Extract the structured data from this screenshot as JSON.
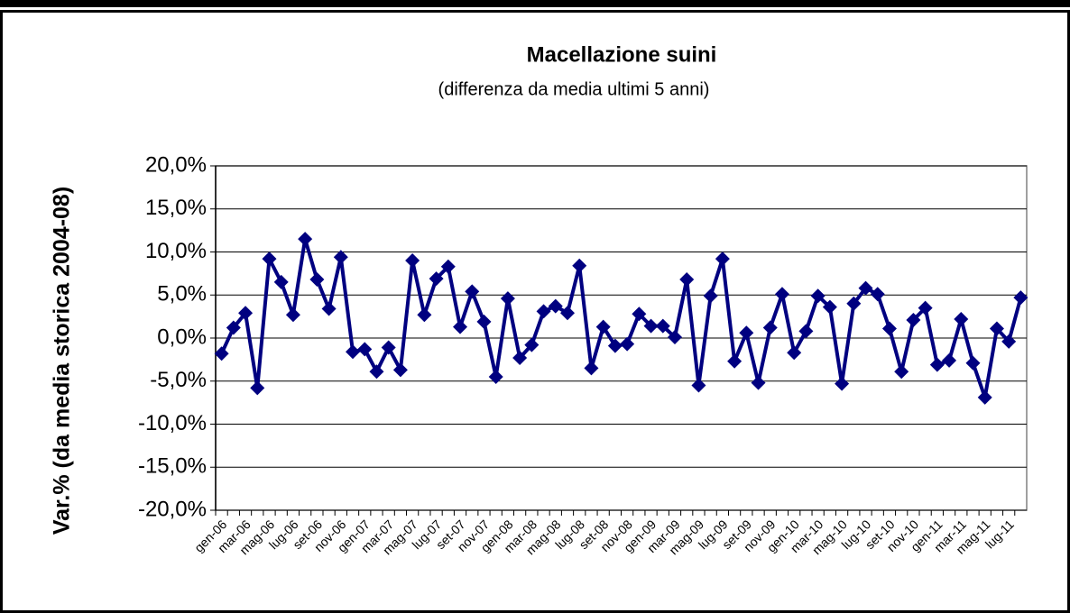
{
  "chart_data": {
    "type": "line",
    "title": "Macellazione suini",
    "subtitle": "(differenza da media ultimi 5 anni)",
    "y_label": "Var.% (da media storica 2004-08)",
    "categories": [
      "gen-06",
      null,
      "mar-06",
      null,
      "mag-06",
      null,
      "lug-06",
      null,
      "set-06",
      null,
      "nov-06",
      null,
      "gen-07",
      null,
      "mar-07",
      null,
      "mag-07",
      null,
      "lug-07",
      null,
      "set-07",
      null,
      "nov-07",
      null,
      "gen-08",
      null,
      "mar-08",
      null,
      "mag-08",
      null,
      "lug-08",
      null,
      "set-08",
      null,
      "nov-08",
      null,
      "gen-09",
      null,
      "mar-09",
      null,
      "mag-09",
      null,
      "lug-09",
      null,
      "set-09",
      null,
      "nov-09",
      null,
      "gen-10",
      null,
      "mar-10",
      null,
      "mag-10",
      null,
      "lug-10",
      null,
      "set-10",
      null,
      "nov-10",
      null,
      "gen-11",
      null,
      "mar-11",
      null,
      "mag-11",
      null,
      "lug-11",
      null
    ],
    "series": [
      {
        "name": "Macellazione suini",
        "color": "#000080",
        "values": [
          -1.8,
          1.2,
          2.9,
          -5.8,
          9.2,
          6.5,
          2.7,
          11.5,
          6.8,
          3.4,
          9.4,
          -1.6,
          -1.3,
          -3.9,
          -1.1,
          -3.7,
          9.0,
          2.7,
          6.9,
          8.3,
          1.3,
          5.4,
          1.9,
          -4.5,
          4.6,
          -2.3,
          -0.8,
          3.1,
          3.7,
          2.9,
          8.4,
          -3.5,
          1.3,
          -0.9,
          -0.7,
          2.8,
          1.4,
          1.4,
          0.1,
          6.8,
          -5.5,
          4.9,
          9.2,
          -2.7,
          0.6,
          -5.2,
          1.2,
          5.1,
          -1.7,
          0.8,
          4.9,
          3.6,
          -5.3,
          4.0,
          5.8,
          5.1,
          1.1,
          -3.9,
          2.1,
          3.5,
          -3.1,
          -2.6,
          2.2,
          -2.9,
          -6.9,
          1.1,
          -0.4,
          4.7
        ]
      }
    ],
    "ylim": [
      -20,
      20
    ],
    "yticks": [
      {
        "value": -20,
        "label": "-20,0%"
      },
      {
        "value": -15,
        "label": "-15,0%"
      },
      {
        "value": -10,
        "label": "-10,0%"
      },
      {
        "value": -5,
        "label": "-5,0%"
      },
      {
        "value": 0,
        "label": "0,0%"
      },
      {
        "value": 5,
        "label": "5,0%"
      },
      {
        "value": 10,
        "label": "10,0%"
      },
      {
        "value": 15,
        "label": "15,0%"
      },
      {
        "value": 20,
        "label": "20,0%"
      }
    ],
    "grid": true
  }
}
